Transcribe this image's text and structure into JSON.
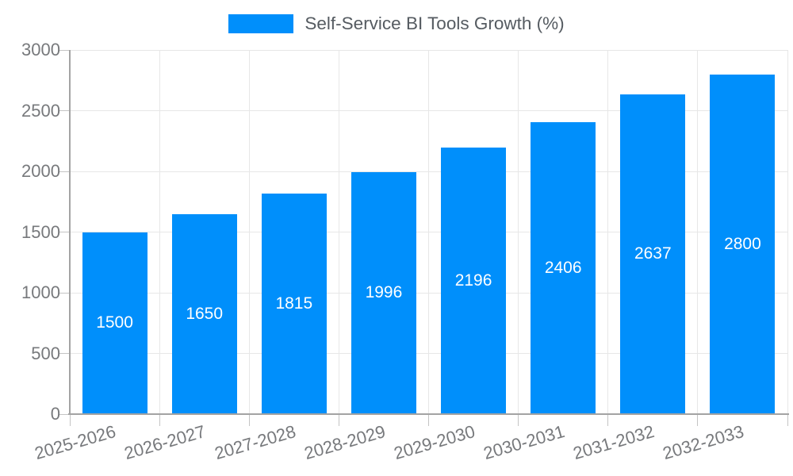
{
  "legend": {
    "label": "Self-Service BI Tools Growth (%)"
  },
  "chart_data": {
    "type": "bar",
    "title": "Self-Service BI Tools Growth (%)",
    "categories": [
      "2025-2026",
      "2026-2027",
      "2027-2028",
      "2028-2029",
      "2029-2030",
      "2030-2031",
      "2031-2032",
      "2032-2033"
    ],
    "series": [
      {
        "name": "Self-Service BI Tools Growth (%)",
        "values": [
          1500,
          1650,
          1815,
          1996,
          2196,
          2406,
          2637,
          2800
        ]
      }
    ],
    "data_labels": [
      "1500",
      "1650",
      "1815",
      "1996",
      "2196",
      "2406",
      "2637",
      "2800"
    ],
    "xlabel": "",
    "ylabel": "",
    "ylim": [
      0,
      3000
    ],
    "yticks": [
      0,
      500,
      1000,
      1500,
      2000,
      2500,
      3000
    ],
    "ytick_labels": [
      "0",
      "500",
      "1000",
      "1500",
      "2000",
      "2500",
      "3000"
    ],
    "grid": true,
    "legend_position": "top",
    "xtick_rotation_deg": -16
  },
  "colors": {
    "bar": "#008FFB",
    "grid": "#e7e7e7",
    "axis_line": "#a3a3a3",
    "tick_mark": "#c4c4c4",
    "axis_label": "#77797c",
    "legend_text": "#555b61",
    "data_label": "#ffffff",
    "background": "#ffffff"
  }
}
